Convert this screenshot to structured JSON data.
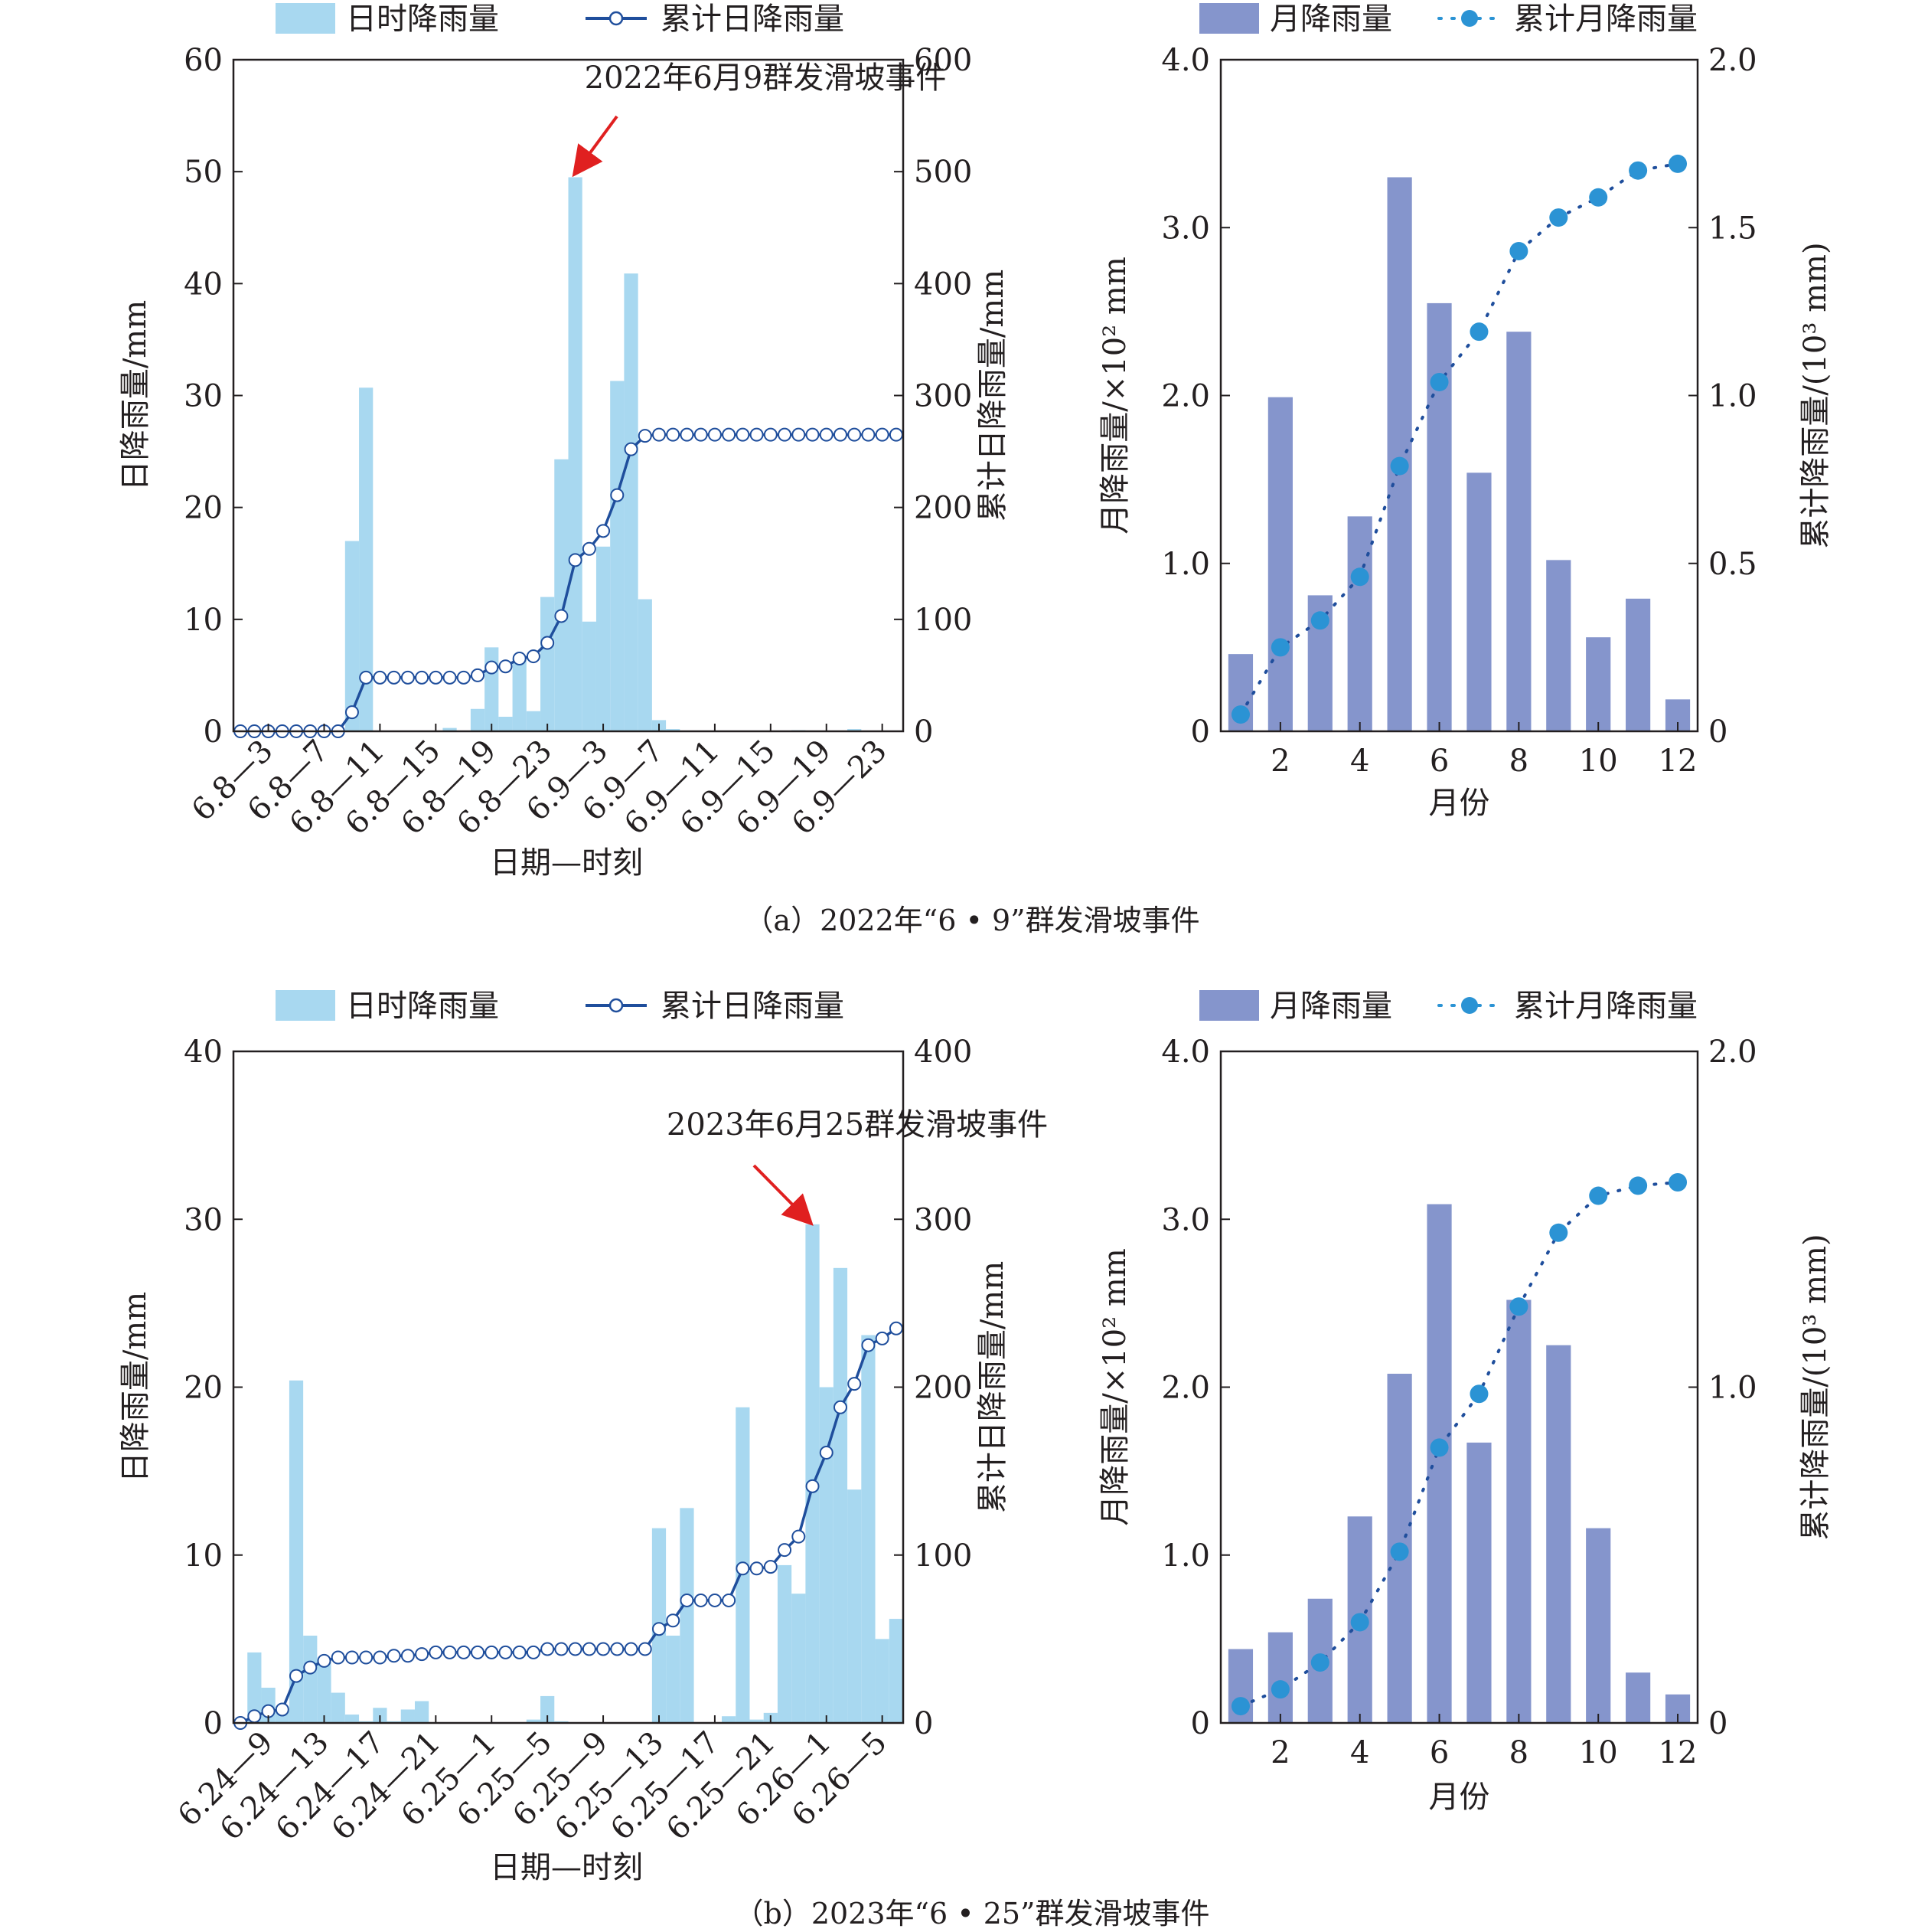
{
  "figure": {
    "captions": [
      "（a）2022年“6 • 9”群发滑坡事件",
      "（b）2023年“6 • 25”群发滑坡事件"
    ]
  },
  "chart_data": [
    {
      "type": "bar+line",
      "panel": "a-left",
      "legend": {
        "bar": "日时降雨量",
        "line": "累计日降雨量",
        "position": "top"
      },
      "xlabel": "日期—时刻",
      "ylabel_left": "日降雨量/mm",
      "ylabel_right": "累计日降雨量/mm",
      "ylim_left": [
        0,
        60
      ],
      "ylim_right": [
        0,
        600
      ],
      "yticks_left": [
        "0",
        "10",
        "20",
        "30",
        "40",
        "50",
        "60"
      ],
      "yticks_right": [
        "0",
        "100",
        "200",
        "300",
        "400",
        "500",
        "600"
      ],
      "xtick_labels": [
        "6.8—3",
        "6.8—7",
        "6.8—11",
        "6.8—15",
        "6.8—19",
        "6.8—23",
        "6.9—3",
        "6.9—7",
        "6.9—11",
        "6.9—15",
        "6.9—19",
        "6.9—23"
      ],
      "annotation": "2022年6月9群发滑坡事件",
      "colors": {
        "bar": "#a8d8f0",
        "line": "#1f4e9c",
        "arrow": "#e02020"
      },
      "series": [
        {
          "name": "日时降雨量",
          "type": "bar",
          "values": [
            0,
            0,
            0,
            0,
            0,
            0,
            0,
            0,
            17,
            30.7,
            0,
            0,
            0,
            0,
            0,
            0.3,
            0,
            2,
            7.5,
            1.3,
            6.5,
            1.8,
            12,
            24.3,
            49.5,
            9.8,
            16.5,
            31.3,
            40.9,
            11.8,
            1,
            0.2,
            0,
            0,
            0,
            0,
            0,
            0,
            0,
            0,
            0.1,
            0,
            0,
            0,
            0.2,
            0,
            0,
            0
          ]
        },
        {
          "name": "累计日降雨量",
          "type": "line",
          "values": [
            0,
            0,
            0,
            0,
            0,
            0,
            0,
            0,
            17,
            48,
            48,
            48,
            48,
            48,
            48,
            48,
            48,
            50,
            57,
            58,
            65,
            67,
            79,
            103,
            153,
            163,
            179,
            211,
            252,
            264,
            265,
            265,
            265,
            265,
            265,
            265,
            265,
            265,
            265,
            265,
            265,
            265,
            265,
            265,
            265,
            265,
            265,
            265
          ]
        }
      ]
    },
    {
      "type": "bar+line",
      "panel": "a-right",
      "legend": {
        "bar": "月降雨量",
        "line": "累计月降雨量",
        "position": "top"
      },
      "xlabel": "月份",
      "ylabel_left": "月降雨量/×10² mm",
      "ylabel_right": "累计降雨量/(10³ mm)",
      "ylim_left": [
        0,
        4
      ],
      "ylim_right": [
        0,
        2
      ],
      "yticks_left": [
        "0",
        "1.0",
        "2.0",
        "3.0",
        "4.0"
      ],
      "yticks_right": [
        "0",
        "0.5",
        "1.0",
        "1.5",
        "2.0"
      ],
      "xtick_labels": [
        "2",
        "4",
        "6",
        "8",
        "10",
        "12"
      ],
      "colors": {
        "bar": "#8595cc",
        "line": "#2b93d4"
      },
      "x": [
        1,
        2,
        3,
        4,
        5,
        6,
        7,
        8,
        9,
        10,
        11,
        12
      ],
      "series": [
        {
          "name": "月降雨量",
          "type": "bar",
          "values": [
            0.46,
            1.99,
            0.81,
            1.28,
            3.3,
            2.55,
            1.54,
            2.38,
            1.02,
            0.56,
            0.79,
            0.19
          ]
        },
        {
          "name": "累计月降雨量",
          "type": "line",
          "values": [
            0.05,
            0.25,
            0.33,
            0.46,
            0.79,
            1.04,
            1.19,
            1.43,
            1.53,
            1.59,
            1.67,
            1.69
          ]
        }
      ]
    },
    {
      "type": "bar+line",
      "panel": "b-left",
      "legend": {
        "bar": "日时降雨量",
        "line": "累计日降雨量",
        "position": "top"
      },
      "xlabel": "日期—时刻",
      "ylabel_left": "日降雨量/mm",
      "ylabel_right": "累计日降雨量/mm",
      "ylim_left": [
        0,
        40
      ],
      "ylim_right": [
        0,
        400
      ],
      "yticks_left": [
        "0",
        "10",
        "20",
        "30",
        "40"
      ],
      "yticks_right": [
        "0",
        "100",
        "200",
        "300",
        "400"
      ],
      "xtick_labels": [
        "6.24—9",
        "6.24—13",
        "6.24—17",
        "6.24—21",
        "6.25—1",
        "6.25—5",
        "6.25—9",
        "6.25—13",
        "6.25—17",
        "6.25—21",
        "6.26—1",
        "6.26—5"
      ],
      "annotation": "2023年6月25群发滑坡事件",
      "colors": {
        "bar": "#a8d8f0",
        "line": "#1f4e9c",
        "arrow": "#e02020"
      },
      "series": [
        {
          "name": "日时降雨量",
          "type": "bar",
          "values": [
            0,
            4.2,
            2.1,
            0.7,
            20.4,
            5.2,
            3.8,
            1.8,
            0.5,
            0.1,
            0.9,
            0.1,
            0.8,
            1.3,
            0,
            0,
            0,
            0,
            0,
            0,
            0,
            0.2,
            1.6,
            0.1,
            0,
            0,
            0,
            0,
            0,
            0,
            11.6,
            5.2,
            12.8,
            0,
            0,
            0.4,
            18.8,
            0.2,
            0.6,
            9.4,
            7.7,
            29.7,
            20,
            27.1,
            13.9,
            23.1,
            5,
            6.2
          ]
        },
        {
          "name": "累计日降雨量",
          "type": "line",
          "values": [
            0,
            4,
            7,
            8,
            28,
            33,
            37,
            39,
            39,
            39,
            39,
            40,
            40,
            41,
            42,
            42,
            42,
            42,
            42,
            42,
            42,
            42,
            44,
            44,
            44,
            44,
            44,
            44,
            44,
            44,
            56,
            61,
            73,
            73,
            73,
            73,
            92,
            92,
            93,
            103,
            111,
            141,
            161,
            188,
            202,
            225,
            229,
            235
          ]
        }
      ]
    },
    {
      "type": "bar+line",
      "panel": "b-right",
      "legend": {
        "bar": "月降雨量",
        "line": "累计月降雨量",
        "position": "top"
      },
      "xlabel": "月份",
      "ylabel_left": "月降雨量/×10² mm",
      "ylabel_right": "累计降雨量/(10³ mm)",
      "ylim_left": [
        0,
        4
      ],
      "ylim_right": [
        0,
        2
      ],
      "yticks_left": [
        "0",
        "1.0",
        "2.0",
        "3.0",
        "4.0"
      ],
      "yticks_right": [
        "0",
        "1.0",
        "2.0"
      ],
      "xtick_labels": [
        "2",
        "4",
        "6",
        "8",
        "10",
        "12"
      ],
      "colors": {
        "bar": "#8595cc",
        "line": "#2b93d4"
      },
      "x": [
        1,
        2,
        3,
        4,
        5,
        6,
        7,
        8,
        9,
        10,
        11,
        12
      ],
      "series": [
        {
          "name": "月降雨量",
          "type": "bar",
          "values": [
            0.44,
            0.54,
            0.74,
            1.23,
            2.08,
            3.09,
            1.67,
            2.52,
            2.25,
            1.16,
            0.3,
            0.17
          ]
        },
        {
          "name": "累计月降雨量",
          "type": "line",
          "values": [
            0.05,
            0.1,
            0.18,
            0.3,
            0.51,
            0.82,
            0.98,
            1.24,
            1.46,
            1.57,
            1.6,
            1.61
          ]
        }
      ]
    }
  ]
}
